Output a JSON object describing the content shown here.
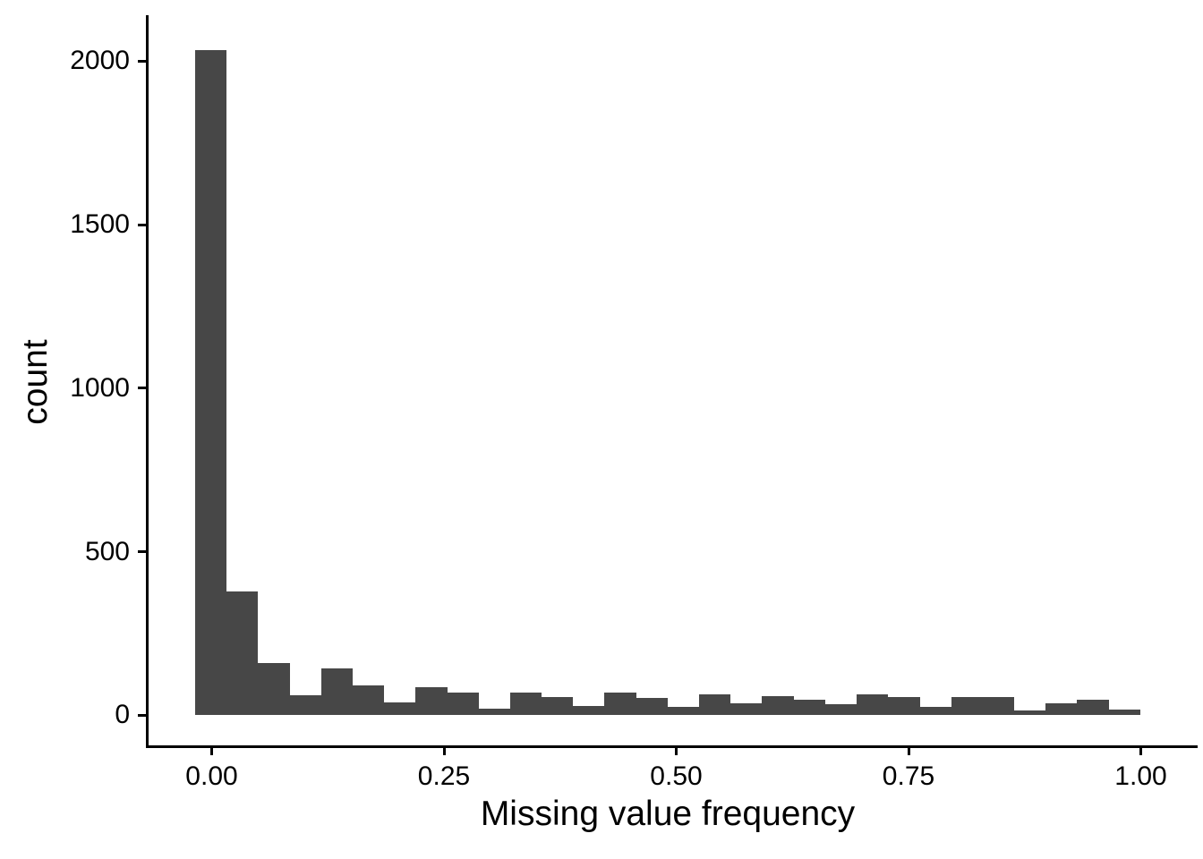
{
  "figure": {
    "background_color": "#ffffff",
    "bar_color": "#474747",
    "axis_color": "#000000",
    "text_color": "#000000"
  },
  "chart_data": {
    "type": "bar",
    "subtype": "histogram",
    "title": "",
    "xlabel": "Missing value frequency",
    "ylabel": "count",
    "grid": false,
    "legend": false,
    "xlim": [
      -0.07,
      1.06
    ],
    "ylim": [
      0,
      2140
    ],
    "bin_edges": [
      -0.019,
      0.015,
      0.049,
      0.083,
      0.117,
      0.151,
      0.185,
      0.219,
      0.253,
      0.287,
      0.321,
      0.355,
      0.389,
      0.423,
      0.457,
      0.491,
      0.524,
      0.558,
      0.592,
      0.626,
      0.66,
      0.694,
      0.728,
      0.762,
      0.796,
      0.83,
      0.864,
      0.898,
      0.932,
      0.966,
      1.0
    ],
    "counts": [
      2035,
      379,
      160,
      62,
      144,
      90,
      40,
      87,
      68,
      21,
      69,
      56,
      27,
      69,
      53,
      25,
      64,
      36,
      57,
      48,
      33,
      64,
      55,
      25,
      55,
      55,
      14,
      36,
      48,
      17
    ],
    "x_ticks": [
      {
        "value": 0.0,
        "label": "0.00"
      },
      {
        "value": 0.25,
        "label": "0.25"
      },
      {
        "value": 0.5,
        "label": "0.50"
      },
      {
        "value": 0.75,
        "label": "0.75"
      },
      {
        "value": 1.0,
        "label": "1.00"
      }
    ],
    "y_ticks": [
      {
        "value": 0,
        "label": "0"
      },
      {
        "value": 500,
        "label": "500"
      },
      {
        "value": 1000,
        "label": "1000"
      },
      {
        "value": 1500,
        "label": "1500"
      },
      {
        "value": 2000,
        "label": "2000"
      }
    ]
  }
}
